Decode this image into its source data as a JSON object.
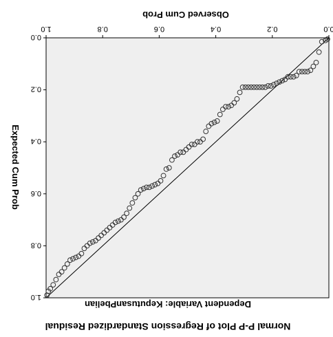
{
  "chart_data": {
    "type": "scatter",
    "title": "Normal P-P Plot of Regression Standardized Residual",
    "subtitle": "Dependent Variable: KeputusanPbelian",
    "xlabel": "Observed Cum Prob",
    "ylabel": "Expected Cum Prob",
    "xlim": [
      0,
      1
    ],
    "ylim": [
      0,
      1
    ],
    "x_ticks": [
      "0.0",
      "0.2",
      "0.4",
      "0.6",
      "0.8",
      "1.0"
    ],
    "y_ticks": [
      "0.0",
      "0.2",
      "0.4",
      "0.6",
      "0.8",
      "1.0"
    ],
    "grid": false,
    "orientation": "rotated 180 degrees",
    "reference_line": [
      [
        0,
        0
      ],
      [
        1,
        1
      ]
    ],
    "points": [
      [
        0.005,
        0.005
      ],
      [
        0.012,
        0.01
      ],
      [
        0.025,
        0.015
      ],
      [
        0.035,
        0.055
      ],
      [
        0.045,
        0.095
      ],
      [
        0.055,
        0.11
      ],
      [
        0.065,
        0.125
      ],
      [
        0.075,
        0.13
      ],
      [
        0.085,
        0.13
      ],
      [
        0.095,
        0.13
      ],
      [
        0.105,
        0.13
      ],
      [
        0.115,
        0.145
      ],
      [
        0.125,
        0.15
      ],
      [
        0.135,
        0.15
      ],
      [
        0.145,
        0.15
      ],
      [
        0.155,
        0.16
      ],
      [
        0.165,
        0.165
      ],
      [
        0.175,
        0.17
      ],
      [
        0.185,
        0.175
      ],
      [
        0.195,
        0.18
      ],
      [
        0.205,
        0.185
      ],
      [
        0.215,
        0.185
      ],
      [
        0.225,
        0.19
      ],
      [
        0.235,
        0.19
      ],
      [
        0.245,
        0.19
      ],
      [
        0.255,
        0.19
      ],
      [
        0.265,
        0.19
      ],
      [
        0.275,
        0.19
      ],
      [
        0.285,
        0.19
      ],
      [
        0.295,
        0.19
      ],
      [
        0.305,
        0.19
      ],
      [
        0.315,
        0.21
      ],
      [
        0.325,
        0.235
      ],
      [
        0.335,
        0.25
      ],
      [
        0.345,
        0.26
      ],
      [
        0.355,
        0.265
      ],
      [
        0.365,
        0.265
      ],
      [
        0.375,
        0.275
      ],
      [
        0.385,
        0.295
      ],
      [
        0.395,
        0.32
      ],
      [
        0.405,
        0.325
      ],
      [
        0.415,
        0.33
      ],
      [
        0.425,
        0.34
      ],
      [
        0.435,
        0.36
      ],
      [
        0.445,
        0.39
      ],
      [
        0.455,
        0.4
      ],
      [
        0.465,
        0.4
      ],
      [
        0.475,
        0.41
      ],
      [
        0.485,
        0.41
      ],
      [
        0.495,
        0.42
      ],
      [
        0.505,
        0.43
      ],
      [
        0.515,
        0.44
      ],
      [
        0.525,
        0.44
      ],
      [
        0.535,
        0.45
      ],
      [
        0.545,
        0.455
      ],
      [
        0.555,
        0.47
      ],
      [
        0.565,
        0.5
      ],
      [
        0.575,
        0.505
      ],
      [
        0.585,
        0.53
      ],
      [
        0.595,
        0.55
      ],
      [
        0.605,
        0.56
      ],
      [
        0.615,
        0.565
      ],
      [
        0.625,
        0.57
      ],
      [
        0.635,
        0.575
      ],
      [
        0.645,
        0.575
      ],
      [
        0.655,
        0.58
      ],
      [
        0.665,
        0.585
      ],
      [
        0.675,
        0.6
      ],
      [
        0.685,
        0.615
      ],
      [
        0.695,
        0.635
      ],
      [
        0.705,
        0.655
      ],
      [
        0.715,
        0.675
      ],
      [
        0.725,
        0.69
      ],
      [
        0.735,
        0.7
      ],
      [
        0.745,
        0.705
      ],
      [
        0.755,
        0.71
      ],
      [
        0.765,
        0.72
      ],
      [
        0.775,
        0.73
      ],
      [
        0.785,
        0.74
      ],
      [
        0.795,
        0.75
      ],
      [
        0.805,
        0.76
      ],
      [
        0.815,
        0.77
      ],
      [
        0.825,
        0.78
      ],
      [
        0.835,
        0.785
      ],
      [
        0.845,
        0.79
      ],
      [
        0.855,
        0.8
      ],
      [
        0.865,
        0.81
      ],
      [
        0.875,
        0.83
      ],
      [
        0.885,
        0.84
      ],
      [
        0.895,
        0.845
      ],
      [
        0.905,
        0.85
      ],
      [
        0.915,
        0.855
      ],
      [
        0.925,
        0.87
      ],
      [
        0.935,
        0.885
      ],
      [
        0.945,
        0.9
      ],
      [
        0.955,
        0.91
      ],
      [
        0.965,
        0.93
      ],
      [
        0.975,
        0.95
      ],
      [
        0.985,
        0.965
      ],
      [
        0.992,
        0.975
      ],
      [
        0.997,
        0.99
      ]
    ]
  }
}
